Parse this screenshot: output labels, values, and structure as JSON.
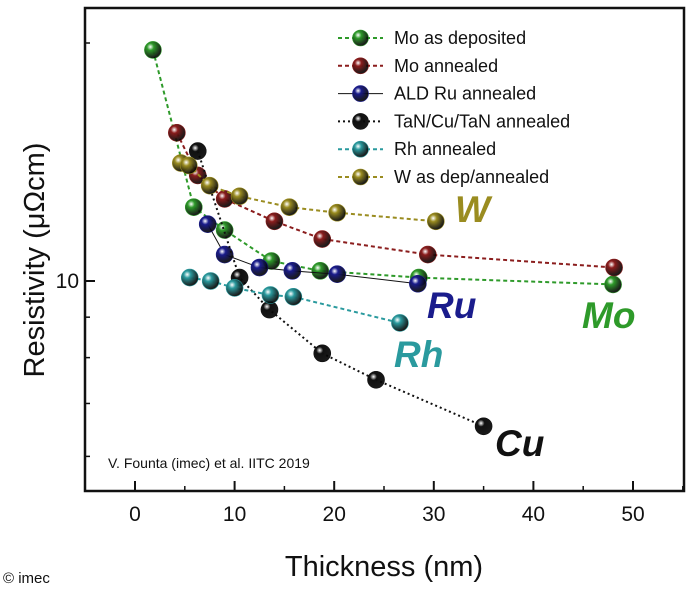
{
  "chart_data": {
    "type": "scatter",
    "xlabel": "Thickness (nm)",
    "ylabel": "Resistivity (μΩcm)",
    "x_ticks": [
      0,
      10,
      20,
      30,
      40,
      50
    ],
    "xlim": [
      -5,
      55
    ],
    "y_scale": "log",
    "y_ticks": [
      10
    ],
    "ylim": [
      5.4,
      23.5
    ],
    "grid": false,
    "legend_position": "top-right",
    "series": [
      {
        "name": "Mo as deposited",
        "label": "Mo",
        "color": "#2e9a2a",
        "line": "dashed",
        "points": [
          [
            1.8,
            19.6
          ],
          [
            5.9,
            12.4
          ],
          [
            9,
            11.6
          ],
          [
            13.7,
            10.6
          ],
          [
            18.6,
            10.3
          ],
          [
            28.5,
            10.1
          ],
          [
            48,
            9.9
          ]
        ]
      },
      {
        "name": "Mo annealed",
        "label": "",
        "color": "#8b1d1d",
        "line": "dashed",
        "points": [
          [
            4.2,
            15.4
          ],
          [
            6.3,
            13.6
          ],
          [
            9,
            12.7
          ],
          [
            14,
            11.9
          ],
          [
            18.8,
            11.3
          ],
          [
            29.4,
            10.8
          ],
          [
            48.1,
            10.4
          ]
        ]
      },
      {
        "name": "ALD Ru annealed",
        "label": "Ru",
        "color": "#1a1c8c",
        "line": "solid",
        "points": [
          [
            7.3,
            11.8
          ],
          [
            9,
            10.8
          ],
          [
            12.5,
            10.4
          ],
          [
            15.8,
            10.3
          ],
          [
            20.3,
            10.2
          ],
          [
            28.4,
            9.92
          ]
        ]
      },
      {
        "name": "TaN/Cu/TaN annealed",
        "label": "Cu",
        "color": "#111111",
        "line": "dotted",
        "points": [
          [
            6.3,
            14.6
          ],
          [
            10.5,
            10.1
          ],
          [
            13.5,
            9.2
          ],
          [
            18.8,
            8.1
          ],
          [
            24.2,
            7.5
          ],
          [
            35,
            6.55
          ]
        ]
      },
      {
        "name": "Rh annealed",
        "label": "Rh",
        "color": "#2a9a9e",
        "line": "dashed",
        "points": [
          [
            5.5,
            10.1
          ],
          [
            7.6,
            10.0
          ],
          [
            10,
            9.8
          ],
          [
            13.6,
            9.6
          ],
          [
            15.9,
            9.55
          ],
          [
            26.6,
            8.85
          ]
        ]
      },
      {
        "name": "W as dep/annealed",
        "label": "W",
        "color": "#9a8c20",
        "line": "dashed",
        "points": [
          [
            4.6,
            14.1
          ],
          [
            5.4,
            14.0
          ],
          [
            7.5,
            13.2
          ],
          [
            10.5,
            12.8
          ],
          [
            15.5,
            12.4
          ],
          [
            20.3,
            12.2
          ],
          [
            30.2,
            11.9
          ]
        ]
      }
    ],
    "annotation": "V. Founta (imec) et al. IITC 2019"
  },
  "copyright": "© imec"
}
